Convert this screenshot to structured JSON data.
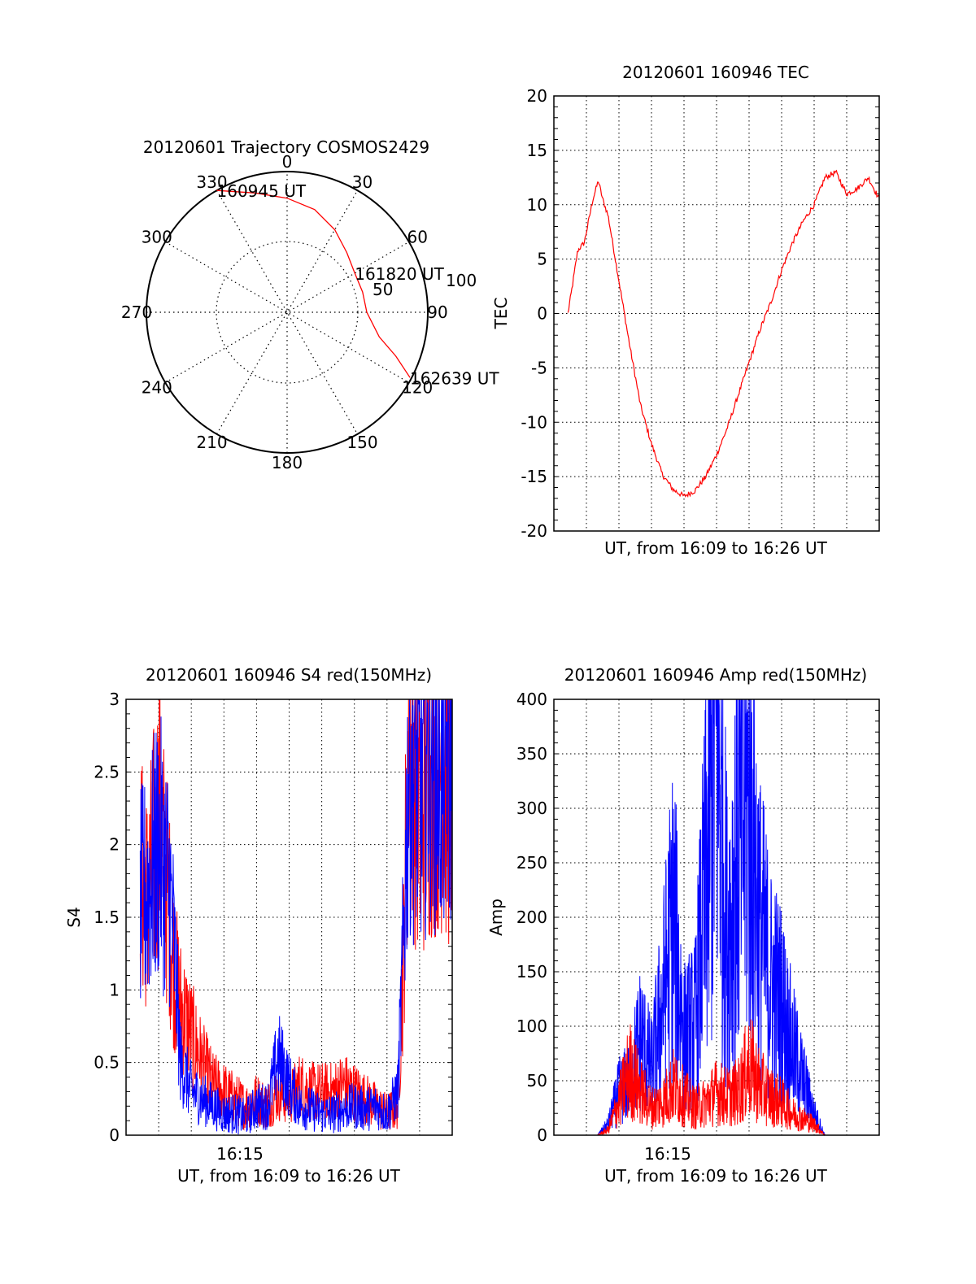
{
  "colors": {
    "red": "#ff0000",
    "blue": "#0000ff",
    "grid": "#000000"
  },
  "chart_data": [
    {
      "type": "polar",
      "title": "20120601 Trajectory COSMOS2429",
      "azimuth_labels": [
        "0",
        "30",
        "60",
        "90",
        "120",
        "150",
        "180",
        "210",
        "240",
        "270",
        "300",
        "330"
      ],
      "radial_labels": [
        "50",
        "100"
      ],
      "series": [
        {
          "color": "#ff0000",
          "points": [
            {
              "az": 330,
              "el": 0
            },
            {
              "az": 345,
              "el": 11
            },
            {
              "az": 0,
              "el": 17
            },
            {
              "az": 15,
              "el": 22
            },
            {
              "az": 30,
              "el": 29
            },
            {
              "az": 45,
              "el": 36
            },
            {
              "az": 60,
              "el": 40
            },
            {
              "az": 75,
              "el": 40
            },
            {
              "az": 90,
              "el": 39
            },
            {
              "az": 105,
              "el": 29
            },
            {
              "az": 112,
              "el": 15
            },
            {
              "az": 118,
              "el": 1
            }
          ]
        }
      ],
      "annotations": [
        {
          "text": "160945 UT",
          "az": 330,
          "el": 0
        },
        {
          "text": "161820 UT",
          "az": 60,
          "el": 40
        },
        {
          "text": "162639 UT",
          "az": 118,
          "el": 1
        }
      ]
    },
    {
      "type": "line",
      "title": "20120601 160946 TEC",
      "xlabel": "UT, from 16:09 to 16:26 UT",
      "ylabel": "TEC",
      "xlim": [
        16.15,
        16.45
      ],
      "ylim": [
        -20,
        20
      ],
      "yticks": [
        "20",
        "15",
        "10",
        "5",
        "0",
        "-5",
        "-10",
        "-15",
        "-20"
      ],
      "grid": true,
      "series": [
        {
          "color": "#ff0000",
          "x": [
            16.163,
            16.167,
            16.172,
            16.178,
            16.182,
            16.186,
            16.191,
            16.195,
            16.2,
            16.21,
            16.22,
            16.23,
            16.24,
            16.25,
            16.26,
            16.27,
            16.28,
            16.29,
            16.3,
            16.31,
            16.32,
            16.33,
            16.34,
            16.35,
            16.36,
            16.37,
            16.38,
            16.39,
            16.4,
            16.41,
            16.42,
            16.43,
            16.44,
            16.445,
            16.45
          ],
          "y": [
            0,
            2.5,
            5.8,
            6.5,
            8.5,
            10.5,
            12.2,
            10.5,
            9,
            3,
            -3,
            -8.5,
            -12,
            -14.8,
            -16.2,
            -16.8,
            -16.3,
            -15,
            -13,
            -10.5,
            -7.5,
            -4.5,
            -1.5,
            1,
            4,
            6.5,
            8.5,
            10,
            12.5,
            13,
            11,
            11.5,
            12.5,
            11.5,
            10.5
          ]
        }
      ]
    },
    {
      "type": "line",
      "title": "20120601 160946 S4 red(150MHz)",
      "xlabel": "UT, from 16:09 to 16:26 UT",
      "ylabel": "S4",
      "xlim": [
        16.15,
        16.45
      ],
      "ylim": [
        0,
        3
      ],
      "yticks": [
        "3",
        "2.5",
        "2",
        "1.5",
        "1",
        "0.5",
        "0"
      ],
      "xtick_labels": [
        "16:15"
      ],
      "grid": true,
      "series": [
        {
          "color": "#ff0000",
          "x": [
            16.163,
            16.17,
            16.18,
            16.19,
            16.195,
            16.2,
            16.21,
            16.22,
            16.23,
            16.24,
            16.25,
            16.26,
            16.27,
            16.28,
            16.29,
            16.3,
            16.31,
            16.32,
            16.33,
            16.34,
            16.35,
            16.36,
            16.37,
            16.38,
            16.39,
            16.4,
            16.405,
            16.41,
            16.42,
            16.43,
            16.44,
            16.45
          ],
          "y": [
            1.8,
            1.6,
            2.2,
            1.5,
            1.1,
            0.9,
            0.7,
            0.5,
            0.35,
            0.3,
            0.25,
            0.2,
            0.25,
            0.2,
            0.3,
            0.25,
            0.35,
            0.3,
            0.3,
            0.3,
            0.35,
            0.3,
            0.25,
            0.2,
            0.15,
            0.2,
            1.2,
            2.8,
            2.2,
            2.5,
            2.6,
            2.3
          ]
        },
        {
          "color": "#0000ff",
          "x": [
            16.163,
            16.17,
            16.18,
            16.19,
            16.195,
            16.2,
            16.21,
            16.22,
            16.23,
            16.24,
            16.25,
            16.26,
            16.27,
            16.28,
            16.29,
            16.3,
            16.31,
            16.32,
            16.33,
            16.34,
            16.35,
            16.36,
            16.37,
            16.38,
            16.39,
            16.4,
            16.405,
            16.41,
            16.42,
            16.43,
            16.44,
            16.45
          ],
          "y": [
            1.6,
            1.7,
            2.0,
            1.7,
            1.2,
            0.5,
            0.3,
            0.25,
            0.2,
            0.15,
            0.15,
            0.12,
            0.2,
            0.2,
            0.55,
            0.35,
            0.2,
            0.18,
            0.15,
            0.15,
            0.18,
            0.2,
            0.18,
            0.2,
            0.15,
            0.3,
            1.3,
            2.6,
            2.4,
            2.7,
            2.5,
            2.6
          ]
        }
      ]
    },
    {
      "type": "line",
      "title": "20120601 160946 Amp red(150MHz)",
      "xlabel": "UT, from 16:09 to 16:26 UT",
      "ylabel": "Amp",
      "xlim": [
        16.15,
        16.45
      ],
      "ylim": [
        0,
        400
      ],
      "yticks": [
        "400",
        "350",
        "300",
        "250",
        "200",
        "150",
        "100",
        "50",
        "0"
      ],
      "xtick_labels": [
        "16:15"
      ],
      "grid": true,
      "series": [
        {
          "color": "#0000ff",
          "x": [
            16.15,
            16.19,
            16.2,
            16.21,
            16.22,
            16.23,
            16.24,
            16.25,
            16.26,
            16.27,
            16.28,
            16.29,
            16.3,
            16.31,
            16.32,
            16.33,
            16.34,
            16.35,
            16.36,
            16.37,
            16.38,
            16.39,
            16.4,
            16.45
          ],
          "y": [
            0,
            0,
            10,
            40,
            50,
            90,
            60,
            120,
            200,
            90,
            100,
            230,
            390,
            180,
            270,
            310,
            190,
            140,
            120,
            80,
            50,
            20,
            0,
            0
          ]
        },
        {
          "color": "#ff0000",
          "x": [
            16.15,
            16.19,
            16.2,
            16.21,
            16.22,
            16.23,
            16.24,
            16.25,
            16.26,
            16.27,
            16.28,
            16.29,
            16.3,
            16.31,
            16.32,
            16.33,
            16.34,
            16.35,
            16.36,
            16.37,
            16.38,
            16.39,
            16.4,
            16.45
          ],
          "y": [
            0,
            0,
            5,
            30,
            60,
            40,
            25,
            30,
            45,
            35,
            25,
            30,
            40,
            35,
            40,
            65,
            45,
            35,
            30,
            20,
            15,
            10,
            0,
            0
          ]
        }
      ]
    }
  ]
}
